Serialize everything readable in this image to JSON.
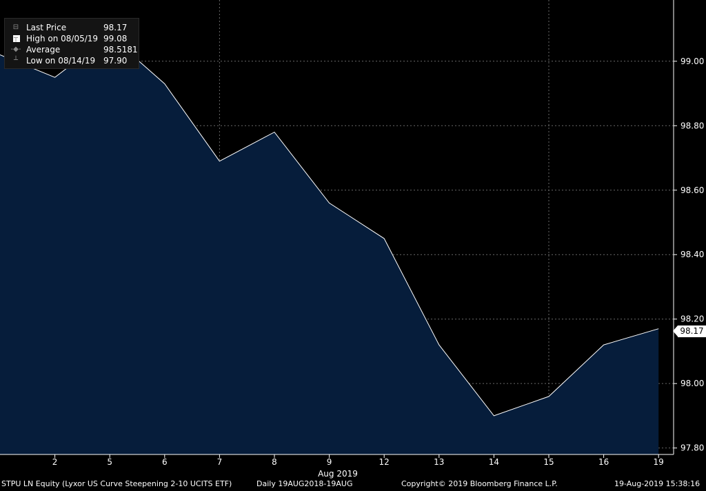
{
  "chart_data": {
    "type": "area",
    "title": "STPU LN Equity (Lyxor US Curve Steepening 2-10 UCITS ETF)",
    "categories": [
      "1",
      "2",
      "5",
      "6",
      "7",
      "8",
      "9",
      "12",
      "13",
      "14",
      "15",
      "16",
      "19"
    ],
    "values": [
      99.02,
      98.95,
      99.08,
      98.93,
      98.69,
      98.78,
      98.56,
      98.45,
      98.12,
      97.9,
      97.96,
      98.12,
      98.17
    ],
    "xlabel": "Aug 2019",
    "x_tick_labels": [
      "2",
      "5",
      "6",
      "7",
      "8",
      "9",
      "12",
      "13",
      "14",
      "15",
      "16",
      "19"
    ],
    "y_tick_labels": [
      "99.00",
      "98.80",
      "98.60",
      "98.40",
      "98.20",
      "98.00",
      "97.80"
    ],
    "ylim": [
      97.78,
      99.19
    ],
    "grid": true,
    "last_price_label": "98.17",
    "colors": {
      "fill": "#061d3b",
      "line": "#ffffff",
      "grid": "#6a6a6a",
      "background": "#000000"
    }
  },
  "legend": {
    "items": [
      {
        "label": "Last Price",
        "value": "98.17"
      },
      {
        "label": "High on 08/05/19",
        "value": "99.08"
      },
      {
        "label": "Average",
        "value": "98.5181"
      },
      {
        "label": "Low on 08/14/19",
        "value": "97.90"
      }
    ]
  },
  "footer": {
    "security": "STPU LN Equity (Lyxor US Curve Steepening 2-10 UCITS ETF)",
    "period": "Daily 19AUG2018-19AUG",
    "copyright": "Copyright© 2019 Bloomberg Finance L.P.",
    "timestamp": "19-Aug-2019 15:38:16"
  }
}
